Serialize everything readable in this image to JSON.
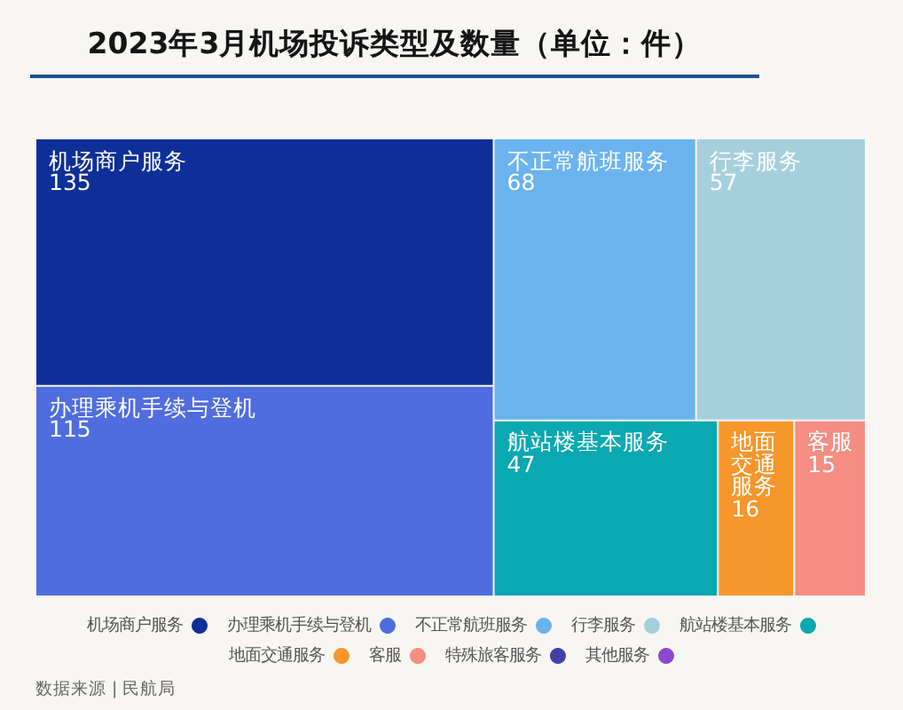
{
  "chart_data": {
    "type": "other",
    "title": "2023年3月机场投诉类型及数量（单位：件）",
    "series": [
      {
        "name": "机场商户服务",
        "color": "#0f2f98",
        "values": [
          135
        ]
      },
      {
        "name": "办理乘机手续与登机",
        "color": "#506ddf",
        "values": [
          115
        ]
      },
      {
        "name": "不正常航班服务",
        "color": "#6bb3ee",
        "values": [
          68
        ]
      },
      {
        "name": "行李服务",
        "color": "#a6cfdc",
        "values": [
          57
        ]
      },
      {
        "name": "航站楼基本服务",
        "color": "#0aa8b0",
        "values": [
          47
        ]
      },
      {
        "name": "地面交通服务",
        "color": "#f7962b",
        "values": [
          16
        ]
      },
      {
        "name": "客服",
        "color": "#f48d82",
        "values": [
          15
        ]
      },
      {
        "name": "特殊旅客服务",
        "color": "#4240a8",
        "values": [
          null
        ]
      },
      {
        "name": "其他服务",
        "color": "#8a4ad0",
        "values": [
          null
        ]
      }
    ],
    "data_labels": true,
    "legend": "bottom",
    "annotations": [
      "数据来源 | 民航局"
    ]
  }
}
